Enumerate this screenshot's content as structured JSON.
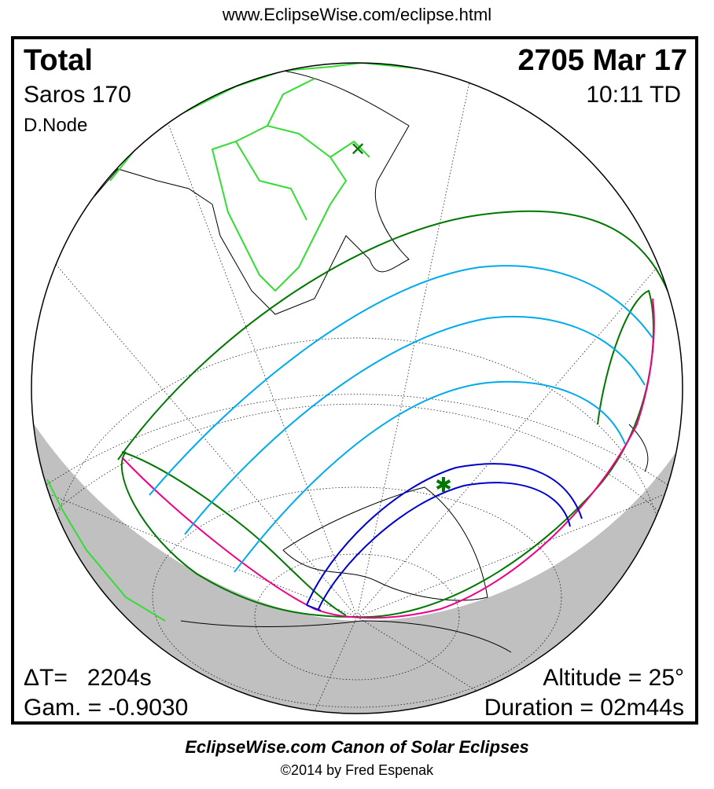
{
  "header": {
    "url": "www.EclipseWise.com/eclipse.html"
  },
  "eclipse": {
    "type": "Total",
    "date": "2705 Mar 17",
    "saros": "Saros 170",
    "time": "10:11 TD",
    "node": "D.Node",
    "delta_t": "ΔT=   2204s",
    "gamma": "Gam. = -0.9030",
    "altitude": "Altitude = 25°",
    "duration": "Duration = 02m44s"
  },
  "colors": {
    "land": "#33dd33",
    "penumbra": "#007700",
    "umbra_limits": "#0000cc",
    "magnitude": "#00aaee",
    "rise_set": "#ee0088",
    "night": "#c0c0c0",
    "grid": "#000000"
  },
  "markers": {
    "subsolar": "x-marker",
    "greatest_eclipse": "star-marker"
  },
  "footer": {
    "title": "EclipseWise.com Canon of Solar Eclipses",
    "copyright": "©2014 by Fred Espenak"
  }
}
